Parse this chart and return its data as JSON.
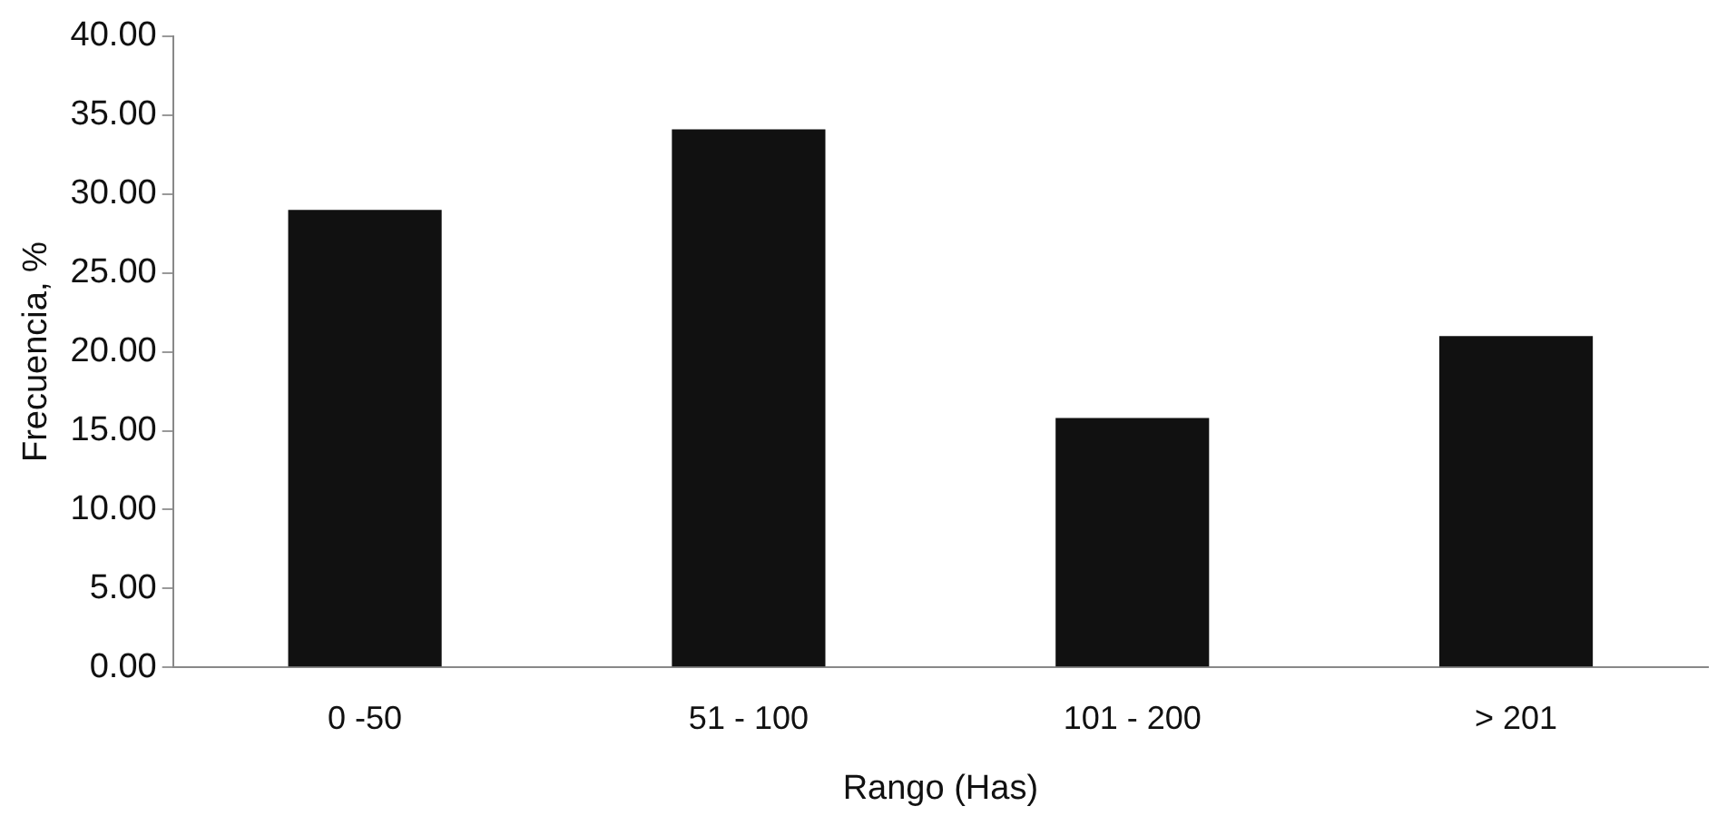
{
  "chart_data": {
    "type": "bar",
    "xlabel": "Rango (Has)",
    "ylabel": "Frecuencia, %",
    "categories": [
      "0 -50",
      "51 - 100",
      "101 - 200",
      "> 201"
    ],
    "values": [
      29.0,
      34.1,
      15.8,
      21.0
    ],
    "color": "#111111",
    "ylim": [
      0,
      40
    ],
    "yticks": [
      {
        "value": 0,
        "label": "0.00"
      },
      {
        "value": 5,
        "label": "5.00"
      },
      {
        "value": 10,
        "label": "10.00"
      },
      {
        "value": 15,
        "label": "15.00"
      },
      {
        "value": 20,
        "label": "20.00"
      },
      {
        "value": 25,
        "label": "25.00"
      },
      {
        "value": 30,
        "label": "30.00"
      },
      {
        "value": 35,
        "label": "35.00"
      },
      {
        "value": 40,
        "label": "40.00"
      }
    ],
    "grid": false,
    "legend": false
  }
}
